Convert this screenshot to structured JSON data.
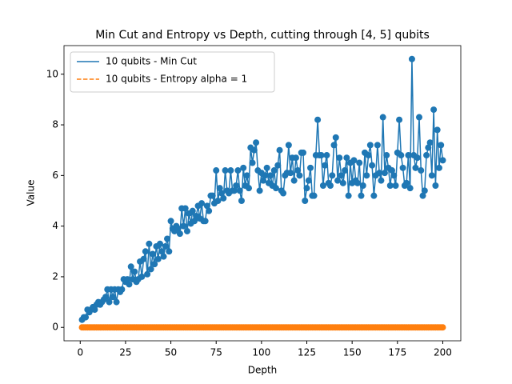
{
  "chart_data": {
    "type": "line",
    "title": "Min Cut and Entropy vs Depth, cutting through [4, 5] qubits",
    "x_label": "Depth",
    "y_label": "Value",
    "x": [
      1,
      2,
      3,
      4,
      5,
      6,
      7,
      8,
      9,
      10,
      11,
      12,
      13,
      14,
      15,
      16,
      17,
      18,
      19,
      20,
      21,
      22,
      23,
      24,
      25,
      26,
      27,
      28,
      29,
      30,
      31,
      32,
      33,
      34,
      35,
      36,
      37,
      38,
      39,
      40,
      41,
      42,
      43,
      44,
      45,
      46,
      47,
      48,
      49,
      50,
      51,
      52,
      53,
      54,
      55,
      56,
      57,
      58,
      59,
      60,
      61,
      62,
      63,
      64,
      65,
      66,
      67,
      68,
      69,
      70,
      71,
      72,
      73,
      74,
      75,
      76,
      77,
      78,
      79,
      80,
      81,
      82,
      83,
      84,
      85,
      86,
      87,
      88,
      89,
      90,
      91,
      92,
      93,
      94,
      95,
      96,
      97,
      98,
      99,
      100,
      101,
      102,
      103,
      104,
      105,
      106,
      107,
      108,
      109,
      110,
      111,
      112,
      113,
      114,
      115,
      116,
      117,
      118,
      119,
      120,
      121,
      122,
      123,
      124,
      125,
      126,
      127,
      128,
      129,
      130,
      131,
      132,
      133,
      134,
      135,
      136,
      137,
      138,
      139,
      140,
      141,
      142,
      143,
      144,
      145,
      146,
      147,
      148,
      149,
      150,
      151,
      152,
      153,
      154,
      155,
      156,
      157,
      158,
      159,
      160,
      161,
      162,
      163,
      164,
      165,
      166,
      167,
      168,
      169,
      170,
      171,
      172,
      173,
      174,
      175,
      176,
      177,
      178,
      179,
      180,
      181,
      182,
      183,
      184,
      185,
      186,
      187,
      188,
      189,
      190,
      191,
      192,
      193,
      194,
      195,
      196,
      197,
      198,
      199,
      200
    ],
    "series": [
      {
        "name": "10 qubits - Min Cut",
        "color": "#1f77b4",
        "dashed": false,
        "values": [
          0.3,
          0.4,
          0.4,
          0.7,
          0.6,
          0.7,
          0.8,
          0.7,
          0.9,
          1.0,
          0.9,
          1.0,
          1.1,
          1.2,
          1.5,
          1.0,
          1.5,
          1.2,
          1.5,
          1.0,
          1.5,
          1.4,
          1.5,
          1.9,
          1.8,
          1.9,
          1.7,
          2.4,
          1.9,
          2.2,
          1.8,
          1.9,
          2.6,
          2.0,
          2.7,
          3.0,
          2.1,
          3.3,
          2.3,
          2.9,
          2.5,
          3.2,
          2.7,
          3.3,
          3.0,
          2.8,
          3.2,
          3.5,
          3.0,
          4.2,
          3.9,
          3.8,
          4.0,
          3.9,
          3.7,
          4.7,
          4.0,
          4.7,
          3.8,
          4.5,
          4.1,
          4.6,
          4.2,
          4.4,
          4.8,
          4.3,
          4.9,
          4.2,
          4.2,
          4.8,
          4.6,
          5.2,
          5.2,
          4.9,
          6.2,
          5.0,
          5.5,
          5.3,
          5.1,
          6.2,
          5.4,
          5.3,
          6.2,
          5.4,
          5.4,
          5.6,
          6.2,
          5.4,
          5.0,
          6.3,
          5.6,
          6.0,
          5.5,
          7.1,
          6.5,
          7.0,
          7.3,
          6.2,
          5.4,
          6.1,
          5.8,
          6.0,
          6.3,
          5.7,
          6.0,
          5.6,
          6.2,
          5.5,
          6.4,
          7.0,
          5.4,
          5.3,
          6.0,
          6.1,
          7.2,
          6.1,
          6.7,
          5.8,
          6.7,
          6.2,
          6.0,
          6.9,
          6.9,
          5.0,
          5.5,
          5.8,
          6.3,
          5.2,
          5.2,
          6.8,
          8.2,
          6.8,
          6.8,
          5.6,
          6.4,
          6.8,
          5.7,
          5.6,
          6.0,
          7.2,
          7.5,
          5.8,
          6.7,
          6.0,
          5.7,
          6.2,
          6.7,
          5.2,
          6.5,
          5.7,
          6.6,
          5.8,
          5.7,
          6.5,
          5.2,
          5.6,
          6.9,
          6.0,
          6.8,
          7.2,
          6.4,
          5.2,
          6.0,
          7.2,
          6.1,
          5.8,
          8.3,
          6.1,
          6.8,
          6.3,
          5.6,
          6.2,
          6.0,
          5.6,
          6.9,
          8.2,
          6.8,
          6.3,
          5.6,
          5.7,
          6.8,
          5.5,
          10.6,
          6.8,
          6.3,
          6.7,
          8.3,
          6.2,
          5.2,
          5.4,
          6.8,
          7.1,
          7.3,
          6.0,
          8.6,
          5.6,
          7.8,
          6.3,
          7.2,
          6.6
        ]
      },
      {
        "name": "10 qubits - Entropy alpha = 1",
        "color": "#ff7f0e",
        "dashed": true,
        "values": [
          0,
          0,
          0,
          0,
          0,
          0,
          0,
          0,
          0,
          0,
          0,
          0,
          0,
          0,
          0,
          0,
          0,
          0,
          0,
          0,
          0,
          0,
          0,
          0,
          0,
          0,
          0,
          0,
          0,
          0,
          0,
          0,
          0,
          0,
          0,
          0,
          0,
          0,
          0,
          0,
          0,
          0,
          0,
          0,
          0,
          0,
          0,
          0,
          0,
          0,
          0,
          0,
          0,
          0,
          0,
          0,
          0,
          0,
          0,
          0,
          0,
          0,
          0,
          0,
          0,
          0,
          0,
          0,
          0,
          0,
          0,
          0,
          0,
          0,
          0,
          0,
          0,
          0,
          0,
          0,
          0,
          0,
          0,
          0,
          0,
          0,
          0,
          0,
          0,
          0,
          0,
          0,
          0,
          0,
          0,
          0,
          0,
          0,
          0,
          0,
          0,
          0,
          0,
          0,
          0,
          0,
          0,
          0,
          0,
          0,
          0,
          0,
          0,
          0,
          0,
          0,
          0,
          0,
          0,
          0,
          0,
          0,
          0,
          0,
          0,
          0,
          0,
          0,
          0,
          0,
          0,
          0,
          0,
          0,
          0,
          0,
          0,
          0,
          0,
          0,
          0,
          0,
          0,
          0,
          0,
          0,
          0,
          0,
          0,
          0,
          0,
          0,
          0,
          0,
          0,
          0,
          0,
          0,
          0,
          0,
          0,
          0,
          0,
          0,
          0,
          0,
          0,
          0,
          0,
          0,
          0,
          0,
          0,
          0,
          0,
          0,
          0,
          0,
          0,
          0,
          0,
          0,
          0,
          0,
          0,
          0,
          0,
          0,
          0,
          0,
          0,
          0,
          0,
          0,
          0,
          0,
          0,
          0,
          0,
          0
        ]
      }
    ],
    "xlim": [
      -8.95,
      209.95
    ],
    "ylim": [
      -0.53,
      11.13
    ],
    "xticks": [
      0,
      25,
      50,
      75,
      100,
      125,
      150,
      175,
      200
    ],
    "yticks": [
      0,
      2,
      4,
      6,
      8,
      10
    ],
    "grid": false,
    "legend": "upper left",
    "markers": true
  }
}
